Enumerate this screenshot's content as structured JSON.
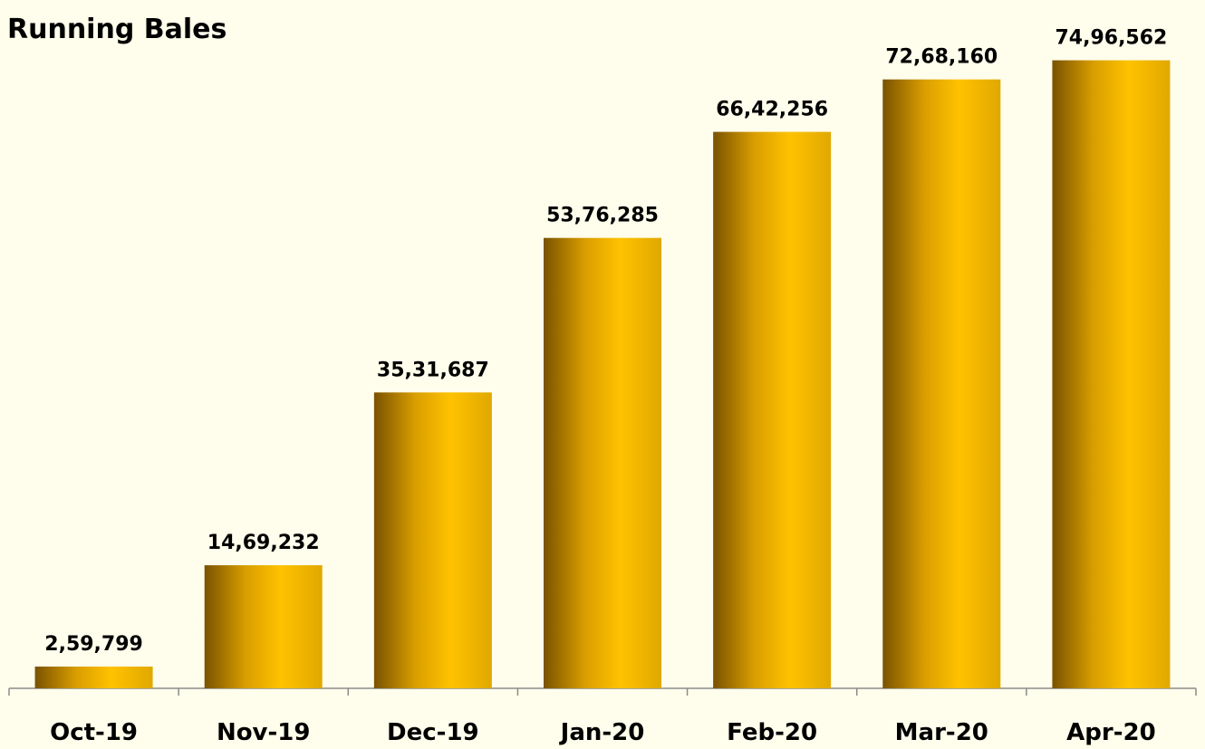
{
  "chart_data": {
    "type": "bar",
    "title": "Running Bales",
    "xlabel": "",
    "ylabel": "",
    "categories": [
      "Oct-19",
      "Nov-19",
      "Dec-19",
      "Jan-20",
      "Feb-20",
      "Mar-20",
      "Apr-20"
    ],
    "values": [
      259799,
      1469232,
      3531687,
      5376285,
      6642256,
      7268160,
      7496562
    ],
    "value_labels": [
      "2,59,799",
      "14,69,232",
      "35,31,687",
      "53,76,285",
      "66,42,256",
      "72,68,160",
      "74,96,562"
    ],
    "ylim": [
      0,
      8000000
    ],
    "grid": false,
    "legend": "none",
    "bar_color": "#ffc200",
    "bar_shade_color": "#7a5200",
    "background_color": "#fffeec"
  }
}
